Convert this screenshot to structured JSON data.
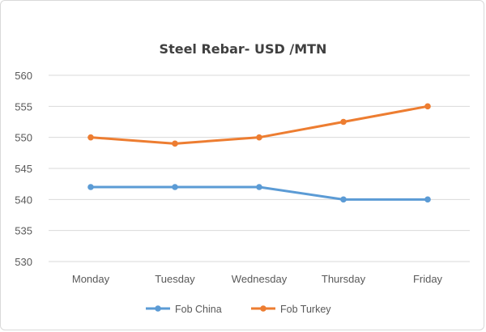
{
  "chart_data": {
    "type": "line",
    "title": "Steel Rebar- USD /MTN",
    "xlabel": "",
    "ylabel": "",
    "categories": [
      "Monday",
      "Tuesday",
      "Wednesday",
      "Thursday",
      "Friday"
    ],
    "ylim": [
      530,
      560
    ],
    "yticks": [
      560,
      555,
      550,
      545,
      540,
      535,
      530
    ],
    "grid": true,
    "legend_position": "bottom",
    "series": [
      {
        "name": "Fob China",
        "color": "#5b9bd5",
        "values": [
          542,
          542,
          542,
          540,
          540
        ]
      },
      {
        "name": "Fob Turkey",
        "color": "#ed7d31",
        "values": [
          550,
          549,
          550,
          552.5,
          555
        ]
      }
    ]
  }
}
